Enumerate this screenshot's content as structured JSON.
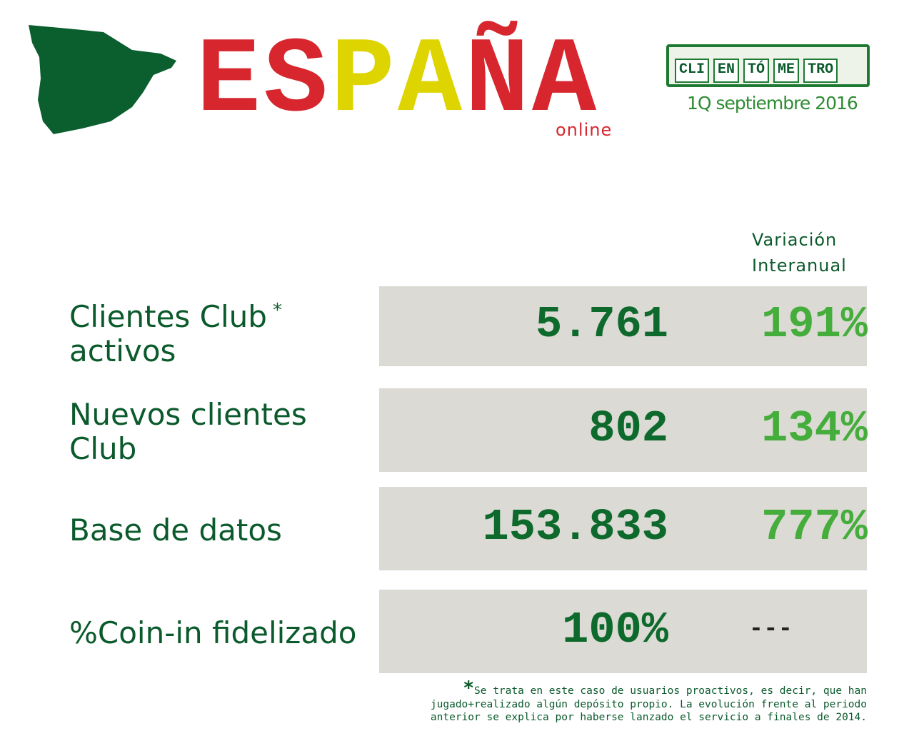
{
  "header": {
    "title_parts": [
      {
        "text": "ES",
        "color": "#d7262e"
      },
      {
        "text": "PA",
        "color": "#ddd400"
      },
      {
        "text": "ÑA",
        "color": "#d7262e"
      }
    ],
    "subtitle": "online",
    "badge": {
      "words": [
        "CLI",
        "EN",
        "TÓ",
        "ME",
        "TRO"
      ],
      "date": "1Q septiembre 2016"
    }
  },
  "table": {
    "column_header": [
      "Variación",
      "Interanual"
    ],
    "rows": [
      {
        "label": [
          "Clientes Club",
          "activos"
        ],
        "mark": "*",
        "value": "5.761",
        "variation": "191%"
      },
      {
        "label": [
          "Nuevos clientes",
          "Club"
        ],
        "value": "802",
        "variation": "134%"
      },
      {
        "label": [
          "Base de datos"
        ],
        "value": "153.833",
        "variation": "777%"
      },
      {
        "label": [
          "%Coin-in fidelizado"
        ],
        "value": "100%",
        "variation": "---"
      }
    ]
  },
  "footnote": {
    "mark": "*",
    "lines": [
      "Se trata en este caso de usuarios proactivos, es decir, que han",
      "jugado+realizado algún depósito propio. La evolución frente al periodo",
      "anterior se explica por haberse lanzado el servicio a finales de 2014."
    ]
  }
}
